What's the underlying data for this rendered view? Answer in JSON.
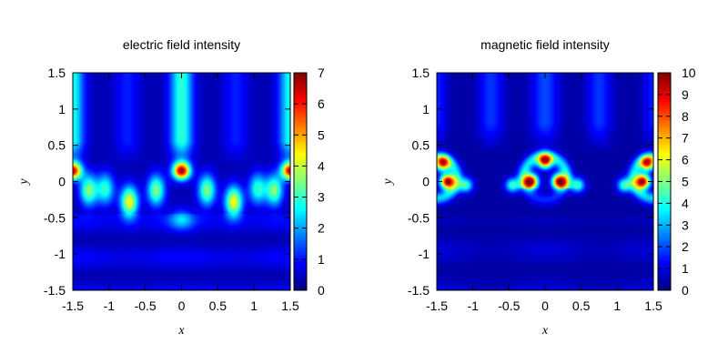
{
  "chart_data": [
    {
      "type": "heatmap",
      "title": "electric field intensity",
      "xlabel": "x",
      "ylabel": "y",
      "xlim": [
        -1.5,
        1.5
      ],
      "ylim": [
        -1.5,
        1.5
      ],
      "x_ticks": [
        -1.5,
        -1,
        -0.5,
        0,
        0.5,
        1,
        1.5
      ],
      "x_tick_labels": [
        "-1.5",
        "-1",
        "-0.5",
        "0",
        "0.5",
        "1",
        "1.5"
      ],
      "y_ticks": [
        -1.5,
        -1,
        -0.5,
        0,
        0.5,
        1,
        1.5
      ],
      "y_tick_labels": [
        "-1.5",
        "-1",
        "-0.5",
        "0",
        "0.5",
        "1",
        "1.5"
      ],
      "colorbar": {
        "range": [
          0,
          7
        ],
        "ticks": [
          0,
          1,
          2,
          3,
          4,
          5,
          6,
          7
        ],
        "tick_labels": [
          "0",
          "1",
          "2",
          "3",
          "4",
          "5",
          "6",
          "7"
        ],
        "colormap": "jet"
      },
      "hotspots": [
        {
          "x": 0,
          "y": 0.15,
          "value": 6.5
        },
        {
          "x": -1.5,
          "y": 0.15,
          "value": 6.2
        },
        {
          "x": 1.5,
          "y": 0.15,
          "value": 6.2
        },
        {
          "x": -0.72,
          "y": -0.28,
          "value": 4.0
        },
        {
          "x": 0.72,
          "y": -0.28,
          "value": 4.0
        },
        {
          "x": -0.35,
          "y": -0.12,
          "value": 3.2
        },
        {
          "x": 0.35,
          "y": -0.12,
          "value": 3.2
        },
        {
          "x": -1.28,
          "y": -0.12,
          "value": 3.2
        },
        {
          "x": 1.28,
          "y": -0.12,
          "value": 3.2
        },
        {
          "x": -1.05,
          "y": -0.1,
          "value": 2.6
        },
        {
          "x": 1.05,
          "y": -0.1,
          "value": 2.6
        }
      ]
    },
    {
      "type": "heatmap",
      "title": "magnetic field intensity",
      "xlabel": "x",
      "ylabel": "y",
      "xlim": [
        -1.5,
        1.5
      ],
      "ylim": [
        -1.5,
        1.5
      ],
      "x_ticks": [
        -1.5,
        -1,
        -0.5,
        0,
        0.5,
        1,
        1.5
      ],
      "x_tick_labels": [
        "-1.5",
        "-1",
        "-0.5",
        "0",
        "0.5",
        "1",
        "1.5"
      ],
      "y_ticks": [
        -1.5,
        -1,
        -0.5,
        0,
        0.5,
        1,
        1.5
      ],
      "y_tick_labels": [
        "-1.5",
        "-1",
        "-0.5",
        "0",
        "0.5",
        "1",
        "1.5"
      ],
      "colorbar": {
        "range": [
          0,
          10
        ],
        "ticks": [
          0,
          1,
          2,
          3,
          4,
          5,
          6,
          7,
          8,
          9,
          10
        ],
        "tick_labels": [
          "0",
          "1",
          "2",
          "3",
          "4",
          "5",
          "6",
          "7",
          "8",
          "9",
          "10"
        ],
        "colormap": "jet"
      },
      "hotspots": [
        {
          "x": -0.2,
          "y": 0,
          "value": 9.5
        },
        {
          "x": 0.2,
          "y": 0,
          "value": 9.5
        },
        {
          "x": 0,
          "y": 0.28,
          "value": 8.0
        },
        {
          "x": -1.35,
          "y": 0,
          "value": 9.3
        },
        {
          "x": 1.35,
          "y": 0,
          "value": 9.3
        },
        {
          "x": -1.42,
          "y": 0.25,
          "value": 7.5
        },
        {
          "x": 1.42,
          "y": 0.25,
          "value": 7.5
        },
        {
          "x": -0.45,
          "y": -0.05,
          "value": 4.0
        },
        {
          "x": 0.45,
          "y": -0.05,
          "value": 4.0
        },
        {
          "x": -1.1,
          "y": -0.05,
          "value": 4.0
        },
        {
          "x": 1.1,
          "y": -0.05,
          "value": 4.0
        }
      ]
    }
  ]
}
